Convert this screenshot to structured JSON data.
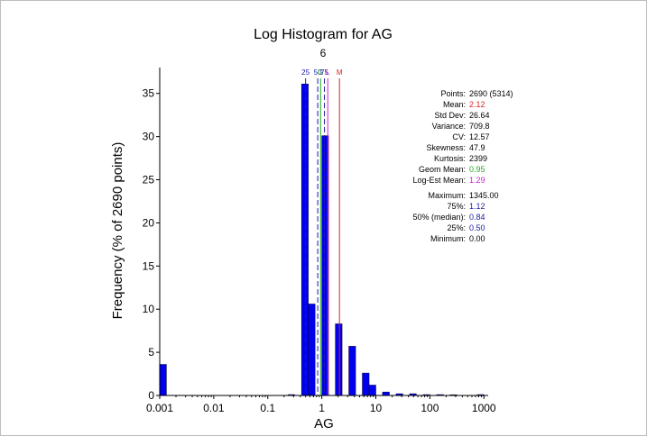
{
  "chart_data": {
    "type": "bar",
    "title": "Log Histogram for AG",
    "subtitle": "6",
    "xlabel": "AG",
    "ylabel": "Frequency (% of 2690 points)",
    "x_scale": "log",
    "xlim": [
      0.001,
      1200
    ],
    "ylim": [
      0,
      38
    ],
    "x_ticks": [
      {
        "value": 0.001,
        "label": "0.001"
      },
      {
        "value": 0.01,
        "label": "0.01"
      },
      {
        "value": 0.1,
        "label": "0.1"
      },
      {
        "value": 1,
        "label": "1"
      },
      {
        "value": 10,
        "label": "10"
      },
      {
        "value": 100,
        "label": "100"
      },
      {
        "value": 1000,
        "label": "1000"
      }
    ],
    "y_ticks": [
      0,
      5,
      10,
      15,
      20,
      25,
      30,
      35
    ],
    "bar_color": "#0000ee",
    "bins": [
      {
        "lo": 0.001,
        "hi": 0.00133,
        "value": 3.6
      },
      {
        "lo": 0.237,
        "hi": 0.316,
        "value": 0.1
      },
      {
        "lo": 0.316,
        "hi": 0.422,
        "value": 0.0
      },
      {
        "lo": 0.422,
        "hi": 0.562,
        "value": 36.1
      },
      {
        "lo": 0.562,
        "hi": 0.75,
        "value": 10.6
      },
      {
        "lo": 0.75,
        "hi": 1.0,
        "value": 0.0
      },
      {
        "lo": 1.0,
        "hi": 1.33,
        "value": 30.1
      },
      {
        "lo": 1.33,
        "hi": 1.78,
        "value": 0.0
      },
      {
        "lo": 1.78,
        "hi": 2.37,
        "value": 8.3
      },
      {
        "lo": 2.37,
        "hi": 3.16,
        "value": 0.0
      },
      {
        "lo": 3.16,
        "hi": 4.22,
        "value": 5.7
      },
      {
        "lo": 4.22,
        "hi": 5.62,
        "value": 0.0
      },
      {
        "lo": 5.62,
        "hi": 7.5,
        "value": 2.6
      },
      {
        "lo": 7.5,
        "hi": 10.0,
        "value": 1.2
      },
      {
        "lo": 13.3,
        "hi": 17.8,
        "value": 0.4
      },
      {
        "lo": 23.7,
        "hi": 31.6,
        "value": 0.2
      },
      {
        "lo": 42.2,
        "hi": 56.2,
        "value": 0.2
      },
      {
        "lo": 75.0,
        "hi": 100,
        "value": 0.1
      },
      {
        "lo": 133,
        "hi": 178,
        "value": 0.1
      },
      {
        "lo": 237,
        "hi": 316,
        "value": 0.05
      },
      {
        "lo": 750,
        "hi": 1000,
        "value": 0.1
      }
    ],
    "markers": [
      {
        "label": "25",
        "value": 0.5,
        "color": "#1a1aa8",
        "style": "dashed"
      },
      {
        "label": "50",
        "value": 0.84,
        "color": "#1a1aa8",
        "style": "dashed"
      },
      {
        "label": "G",
        "value": 0.95,
        "color": "#22aa22",
        "style": "solid"
      },
      {
        "label": "75",
        "value": 1.12,
        "color": "#1a1aa8",
        "style": "dashed"
      },
      {
        "label": "L",
        "value": 1.29,
        "color": "#cc22cc",
        "style": "solid"
      },
      {
        "label": "M",
        "value": 2.12,
        "color": "#dd2222",
        "style": "solid"
      }
    ],
    "stats": [
      {
        "label": "Points:",
        "value": "2690 (5314)",
        "color": "#000000"
      },
      {
        "label": "Mean:",
        "value": "2.12",
        "color": "#dd2222"
      },
      {
        "label": "Std Dev:",
        "value": "26.64",
        "color": "#000000"
      },
      {
        "label": "Variance:",
        "value": "709.8",
        "color": "#000000"
      },
      {
        "label": "CV:",
        "value": "12.57",
        "color": "#000000"
      },
      {
        "label": "Skewness:",
        "value": "47.9",
        "color": "#000000"
      },
      {
        "label": "Kurtosis:",
        "value": "2399",
        "color": "#000000"
      },
      {
        "label": "Geom Mean:",
        "value": "0.95",
        "color": "#22aa22"
      },
      {
        "label": "Log-Est Mean:",
        "value": "1.29",
        "color": "#cc22cc"
      },
      {
        "label": "Maximum:",
        "value": "1345.00",
        "color": "#000000"
      },
      {
        "label": "75%:",
        "value": "1.12",
        "color": "#1a1aa8"
      },
      {
        "label": "50% (median):",
        "value": "0.84",
        "color": "#1a1aa8"
      },
      {
        "label": "25%:",
        "value": "0.50",
        "color": "#1a1aa8"
      },
      {
        "label": "Minimum:",
        "value": "0.00",
        "color": "#000000"
      }
    ]
  }
}
